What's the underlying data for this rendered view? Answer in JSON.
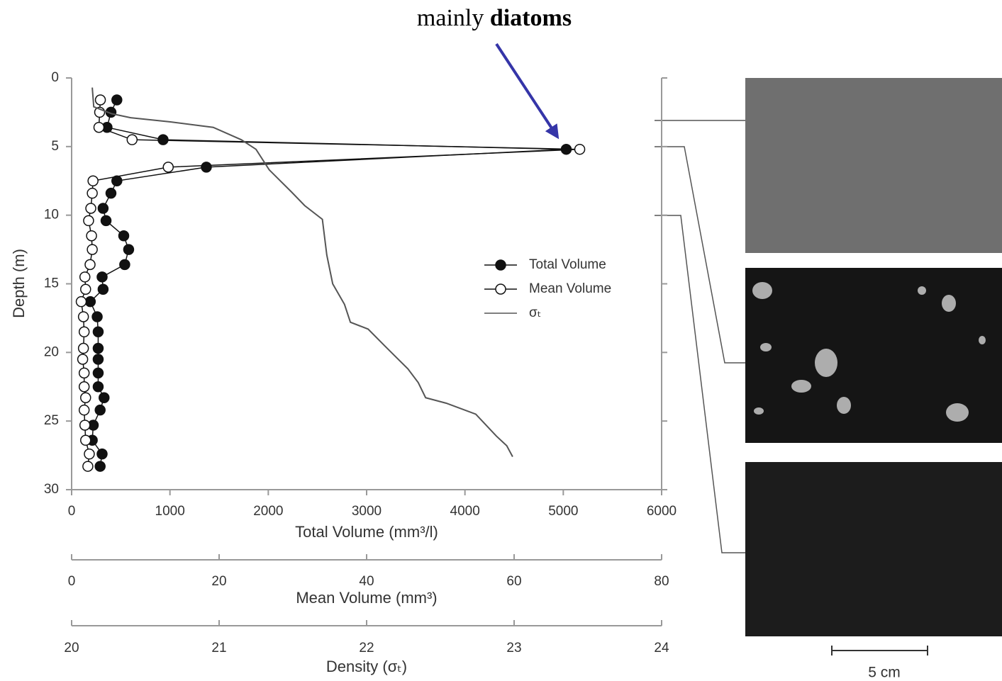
{
  "chart_data": {
    "type": "profile",
    "annotation": {
      "text": "mainly",
      "emphasis": "diatoms"
    },
    "ylabel": "Depth (m)",
    "ylim": [
      0,
      30
    ],
    "yticks": [
      0,
      5,
      10,
      15,
      20,
      25,
      30
    ],
    "xaxes": [
      {
        "label": "Total Volume (mm³/l)",
        "xlim": [
          0,
          6000
        ],
        "xticks": [
          0,
          1000,
          2000,
          3000,
          4000,
          5000,
          6000
        ]
      },
      {
        "label": "Mean Volume (mm³)",
        "xlim": [
          0,
          80
        ],
        "xticks": [
          0,
          20,
          40,
          60,
          80
        ]
      },
      {
        "label": "Density (σₜ)",
        "xlim": [
          20,
          24
        ],
        "xticks": [
          20,
          21,
          22,
          23,
          24
        ]
      }
    ],
    "series": [
      {
        "name": "Total Volume",
        "axis": 0,
        "marker": "filled",
        "color": "#111111",
        "x": [
          460,
          400,
          360,
          930,
          5030,
          1370,
          460,
          400,
          320,
          350,
          530,
          580,
          540,
          310,
          320,
          190,
          260,
          270,
          270,
          270,
          270,
          270,
          330,
          290,
          220,
          210,
          310,
          290
        ],
        "y": [
          1.6,
          2.5,
          3.6,
          4.5,
          5.2,
          6.5,
          7.5,
          8.4,
          9.5,
          10.4,
          11.5,
          12.5,
          13.6,
          14.5,
          15.4,
          16.3,
          17.4,
          18.5,
          19.7,
          20.5,
          21.5,
          22.5,
          23.3,
          24.2,
          25.3,
          26.4,
          27.4,
          28.3
        ]
      },
      {
        "name": "Mean Volume",
        "axis": 1,
        "marker": "open",
        "color": "#111111",
        "x": [
          3.9,
          3.8,
          3.7,
          8.2,
          68.9,
          13.1,
          2.9,
          2.8,
          2.6,
          2.3,
          2.7,
          2.8,
          2.5,
          1.8,
          1.9,
          1.3,
          1.6,
          1.7,
          1.6,
          1.5,
          1.7,
          1.7,
          1.9,
          1.7,
          1.8,
          1.9,
          2.4,
          2.2
        ],
        "y": [
          1.6,
          2.5,
          3.6,
          4.5,
          5.2,
          6.5,
          7.5,
          8.4,
          9.5,
          10.4,
          11.5,
          12.5,
          13.6,
          14.5,
          15.4,
          16.3,
          17.4,
          18.5,
          19.7,
          20.5,
          21.5,
          22.5,
          23.3,
          24.2,
          25.3,
          26.4,
          27.4,
          28.3
        ]
      },
      {
        "name": "σₜ",
        "axis": 2,
        "marker": "none",
        "color": "#555555",
        "x": [
          20.14,
          20.15,
          20.27,
          20.4,
          20.67,
          20.96,
          21.15,
          21.25,
          21.34,
          21.49,
          21.58,
          21.7,
          21.73,
          21.77,
          21.85,
          21.89,
          22.01,
          22.13,
          22.28,
          22.35,
          22.4,
          22.54,
          22.74,
          22.81,
          22.88,
          22.95,
          22.99
        ],
        "y": [
          0.7,
          2.1,
          2.6,
          2.9,
          3.2,
          3.6,
          4.5,
          5.2,
          6.7,
          8.3,
          9.3,
          10.3,
          12.9,
          15.0,
          16.5,
          17.8,
          18.3,
          19.6,
          21.2,
          22.2,
          23.3,
          23.7,
          24.5,
          25.3,
          26.1,
          26.8,
          27.6
        ]
      }
    ],
    "scale_bar": "5 cm"
  }
}
